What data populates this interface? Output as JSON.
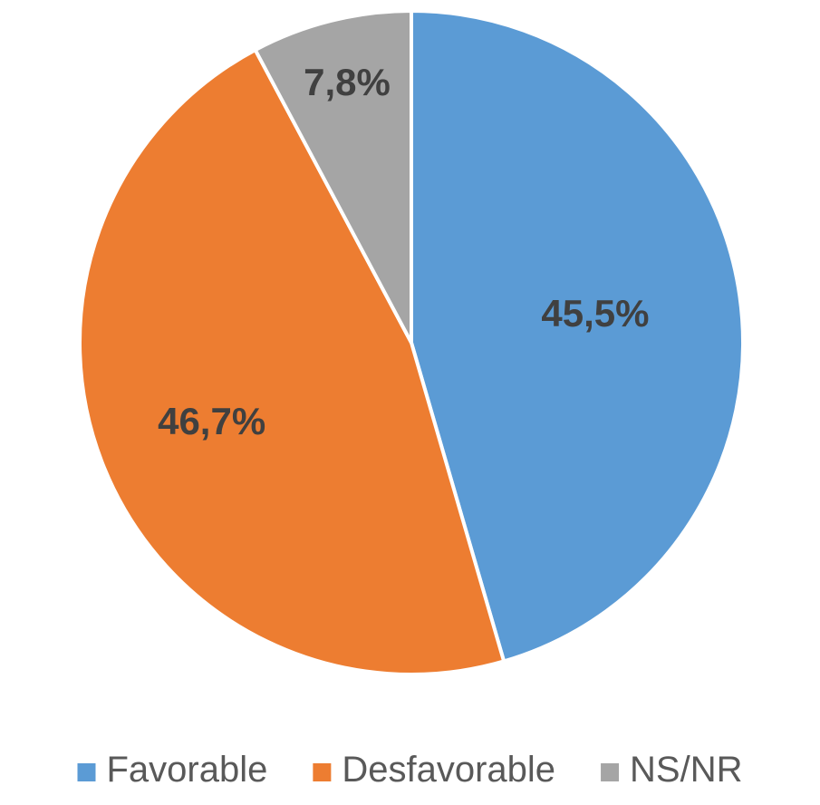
{
  "chart_data": {
    "type": "pie",
    "title": "",
    "slices": [
      {
        "label": "Favorable",
        "value": 45.5,
        "display": "45,5%",
        "color": "#5b9bd5"
      },
      {
        "label": "Desfavorable",
        "value": 46.7,
        "display": "46,7%",
        "color": "#ed7d31"
      },
      {
        "label": "NS/NR",
        "value": 7.8,
        "display": "7,8%",
        "color": "#a5a5a5"
      }
    ],
    "start": "12 o'clock",
    "direction": "clockwise",
    "legend": "bottom"
  }
}
